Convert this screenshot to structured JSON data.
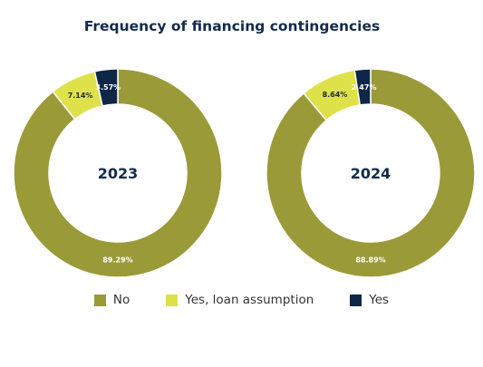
{
  "chart_data": {
    "type": "pie",
    "title": "Frequency of financing contingencies",
    "categories": [
      "No",
      "Yes, loan assumption",
      "Yes"
    ],
    "colors": [
      "#9a9b38",
      "#dfe14a",
      "#0f2747"
    ],
    "legend_position": "bottom",
    "charts": [
      {
        "label": "2023",
        "values": [
          89.29,
          7.14,
          3.57
        ],
        "value_labels": [
          "89.29%",
          "7.14%",
          "3.57%"
        ]
      },
      {
        "label": "2024",
        "values": [
          88.89,
          8.64,
          2.47
        ],
        "value_labels": [
          "88.89%",
          "8.64%",
          "2.47%"
        ]
      }
    ]
  }
}
